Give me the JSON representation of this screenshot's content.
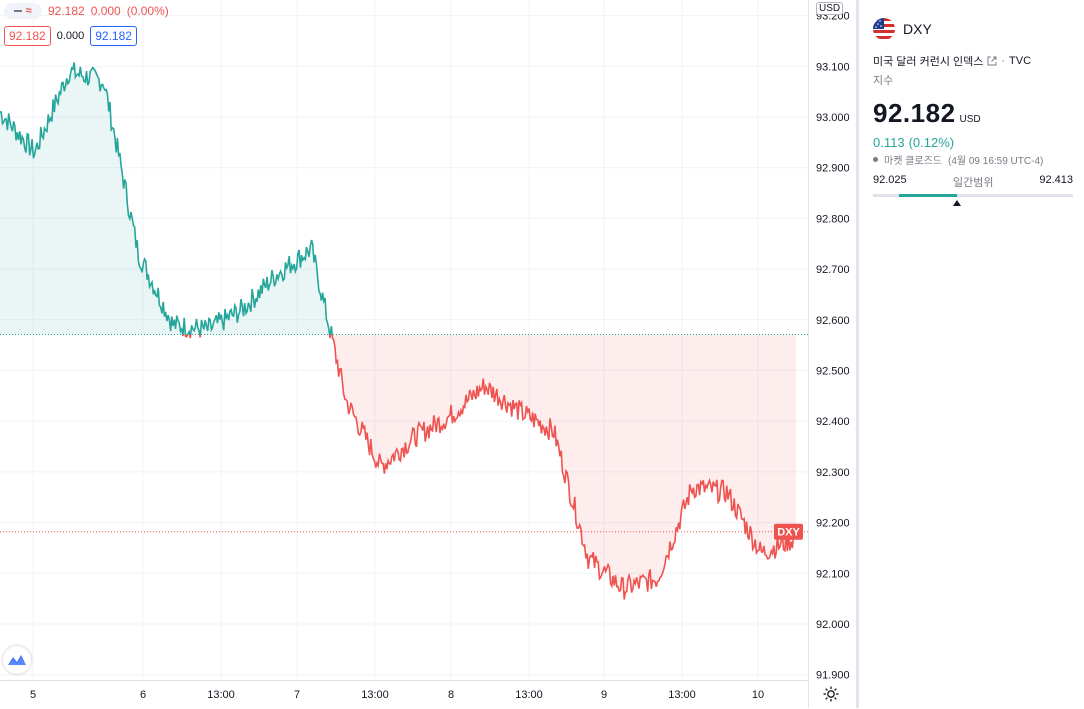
{
  "legend": {
    "last": "92.182",
    "change": "0.000",
    "change_pct": "(0.00%)",
    "bid": "92.182",
    "spread": "0.000",
    "ask": "92.182"
  },
  "price_axis": {
    "currency": "USD",
    "ticks": [
      {
        "label": "93.200",
        "value": 93.2
      },
      {
        "label": "93.100",
        "value": 93.1
      },
      {
        "label": "93.000",
        "value": 93.0
      },
      {
        "label": "92.900",
        "value": 92.9
      },
      {
        "label": "92.800",
        "value": 92.8
      },
      {
        "label": "92.700",
        "value": 92.7
      },
      {
        "label": "92.600",
        "value": 92.6
      },
      {
        "label": "92.500",
        "value": 92.5
      },
      {
        "label": "92.400",
        "value": 92.4
      },
      {
        "label": "92.300",
        "value": 92.3
      },
      {
        "label": "92.200",
        "value": 92.2
      },
      {
        "label": "92.100",
        "value": 92.1
      },
      {
        "label": "92.000",
        "value": 92.0
      },
      {
        "label": "91.900",
        "value": 91.9
      }
    ],
    "last_price_tag": "DXY"
  },
  "time_axis": {
    "labels": [
      "5",
      "6",
      "13:00",
      "7",
      "13:00",
      "8",
      "13:00",
      "9",
      "13:00",
      "10"
    ]
  },
  "chart_data": {
    "type": "area",
    "symbol": "DXY",
    "baseline": 92.571,
    "last_price": 92.182,
    "ylim": [
      91.88,
      93.23
    ],
    "colors": {
      "above": "#26a69a",
      "below": "#ef5350"
    },
    "x": [
      "5",
      "",
      "",
      "",
      "",
      "",
      "6",
      "",
      "13:00",
      "",
      "7",
      "",
      "13:00",
      "",
      "8",
      "",
      "13:00",
      "",
      "9",
      "",
      "13:00",
      "",
      "10",
      ""
    ],
    "values": [
      93.01,
      92.93,
      93.09,
      93.07,
      92.73,
      92.59,
      92.58,
      92.62,
      92.69,
      92.74,
      92.44,
      92.31,
      92.37,
      92.41,
      92.47,
      92.42,
      92.38,
      92.13,
      92.07,
      92.09,
      92.27,
      92.26,
      92.14,
      92.17
    ]
  },
  "side_panel": {
    "symbol": "DXY",
    "description": "미국 달러 커런시 인덱스",
    "exchange": "TVC",
    "type": "지수",
    "price": "92.182",
    "currency": "USD",
    "change": "0.113",
    "change_pct": "(0.12%)",
    "market_status": "마켓 클로즈드",
    "timestamp": "(4월 09 16:59 UTC-4)",
    "day_range": {
      "label": "일간범위",
      "low": "92.025",
      "high": "92.413",
      "fill_from": 0.13,
      "fill_to": 0.42,
      "current": 0.42
    }
  }
}
